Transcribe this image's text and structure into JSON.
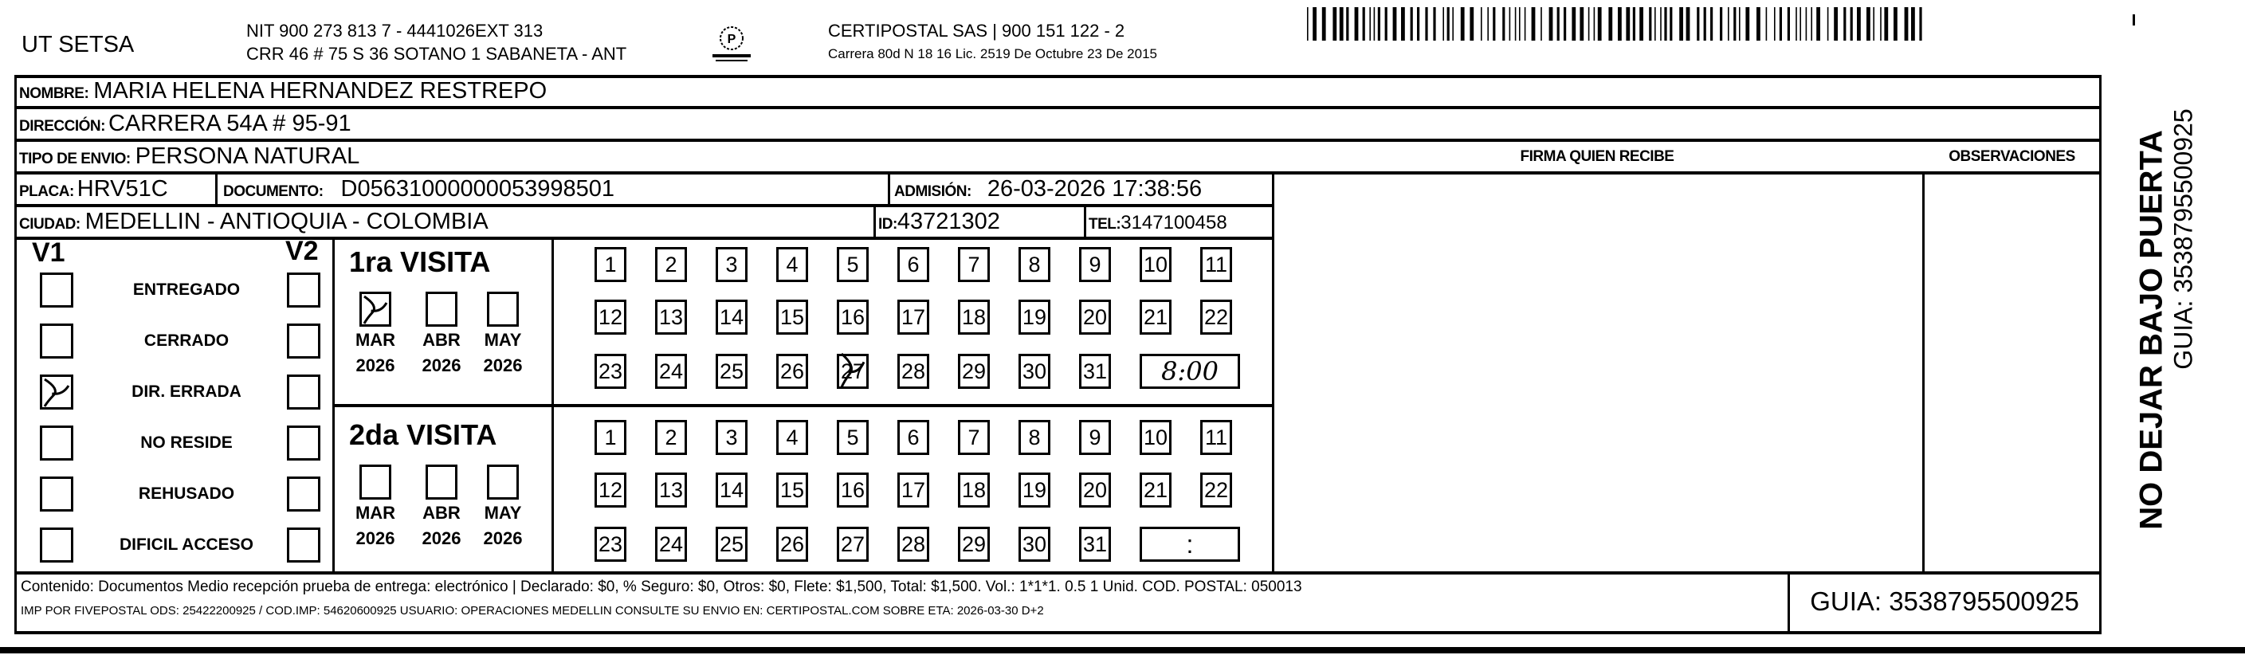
{
  "header": {
    "company": "UT SETSA",
    "nit_line": "NIT 900 273 813 7 - 4441026EXT 313",
    "address_line": "CRR 46 # 75 S 36 SOTANO 1 SABANETA - ANT",
    "logo_text": "CERTIPOSTAL",
    "carrier_line": "CERTIPOSTAL SAS | 900 151 122 - 2",
    "license_line": "Carrera 80d N 18 16  Lic. 2519 De Octubre 23 De 2015"
  },
  "recipient": {
    "nombre_label": "NOMBRE:",
    "nombre": "MARIA HELENA HERNANDEZ RESTREPO",
    "direccion_label": "DIRECCIÓN:",
    "direccion": "CARRERA 54A # 95-91",
    "tipo_label": "TIPO DE ENVIO:",
    "tipo": "PERSONA NATURAL",
    "placa_label": "PLACA:",
    "placa": "HRV51C",
    "documento_label": "DOCUMENTO:",
    "documento": "D05631000000053998501",
    "admision_label": "ADMISIÓN:",
    "admision": "26-03-2026 17:38:56",
    "ciudad_label": "CIUDAD:",
    "ciudad": "MEDELLIN - ANTIOQUIA - COLOMBIA",
    "id_label": "ID:",
    "id": "43721302",
    "tel_label": "TEL:",
    "tel": "3147100458"
  },
  "firma_label": "FIRMA QUIEN RECIBE",
  "observaciones_label": "OBSERVACIONES",
  "status": {
    "v1_label": "V1",
    "v2_label": "V2",
    "items": [
      {
        "label": "ENTREGADO",
        "v1": false,
        "v2": false
      },
      {
        "label": "CERRADO",
        "v1": false,
        "v2": false
      },
      {
        "label": "DIR. ERRADA",
        "v1": true,
        "v2": false
      },
      {
        "label": "NO RESIDE",
        "v1": false,
        "v2": false
      },
      {
        "label": "REHUSADO",
        "v1": false,
        "v2": false
      },
      {
        "label": "DIFICIL ACCESO",
        "v1": false,
        "v2": false
      }
    ]
  },
  "visits": [
    {
      "title": "1ra VISITA",
      "months": [
        {
          "month": "MAR",
          "year": "2026",
          "checked": true
        },
        {
          "month": "ABR",
          "year": "2026",
          "checked": false
        },
        {
          "month": "MAY",
          "year": "2026",
          "checked": false
        }
      ],
      "days": [
        "1",
        "2",
        "3",
        "4",
        "5",
        "6",
        "7",
        "8",
        "9",
        "10",
        "11",
        "12",
        "13",
        "14",
        "15",
        "16",
        "17",
        "18",
        "19",
        "20",
        "21",
        "22",
        "23",
        "24",
        "25",
        "26",
        "27",
        "28",
        "29",
        "30",
        "31"
      ],
      "marked_day": "27",
      "time": "8:00"
    },
    {
      "title": "2da VISITA",
      "months": [
        {
          "month": "MAR",
          "year": "2026",
          "checked": false
        },
        {
          "month": "ABR",
          "year": "2026",
          "checked": false
        },
        {
          "month": "MAY",
          "year": "2026",
          "checked": false
        }
      ],
      "days": [
        "1",
        "2",
        "3",
        "4",
        "5",
        "6",
        "7",
        "8",
        "9",
        "10",
        "11",
        "12",
        "13",
        "14",
        "15",
        "16",
        "17",
        "18",
        "19",
        "20",
        "21",
        "22",
        "23",
        "24",
        "25",
        "26",
        "27",
        "28",
        "29",
        "30",
        "31"
      ],
      "marked_day": null,
      "time": ":"
    }
  ],
  "footer": {
    "line1": "Contenido: Documentos Medio recepción prueba de entrega: electrónico | Declarado: $0, % Seguro: $0, Otros: $0, Flete: $1,500, Total: $1,500. Vol.: 1*1*1. 0.5  1 Unid. COD. POSTAL: 050013",
    "line2": "IMP POR FIVEPOSTAL ODS: 25422200925 / COD.IMP: 54620600925 USUARIO: OPERACIONES MEDELLIN CONSULTE SU ENVIO EN: CERTIPOSTAL.COM SOBRE ETA: 2026-03-30 D+2",
    "guia": "GUIA: 3538795500925"
  },
  "side": {
    "warning": "NO DEJAR BAJO PUERTA",
    "guia": "GUIA: 3538795500925"
  },
  "barcode_value": "3538795500925"
}
